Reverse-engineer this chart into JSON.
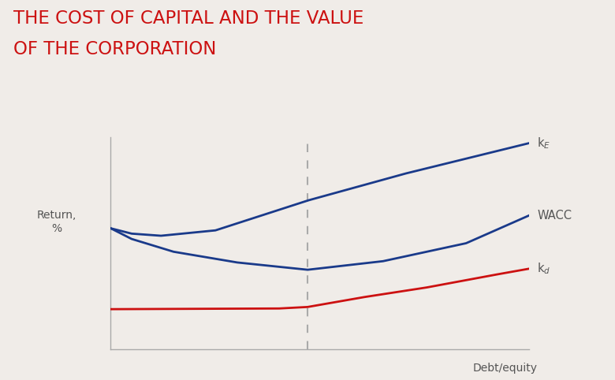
{
  "title_line1": "THE COST OF CAPITAL AND THE VALUE",
  "title_line2": "OF THE CORPORATION",
  "title_color": "#cc1111",
  "title_fontsize": 16.5,
  "background_color": "#f0ece8",
  "ylabel": "Return,\n%",
  "xlabel": "Debt/equity",
  "label_color": "#555555",
  "label_fontsize": 10,
  "line_color_blue": "#1a3a8a",
  "line_color_red": "#cc1111",
  "dashed_line_color": "#aaaaaa",
  "dashed_line_x": 0.47,
  "axis_color": "#aaaaaa",
  "ke_label": "k$_E$",
  "wacc_label": "WACC",
  "kd_label": "k$_d$"
}
